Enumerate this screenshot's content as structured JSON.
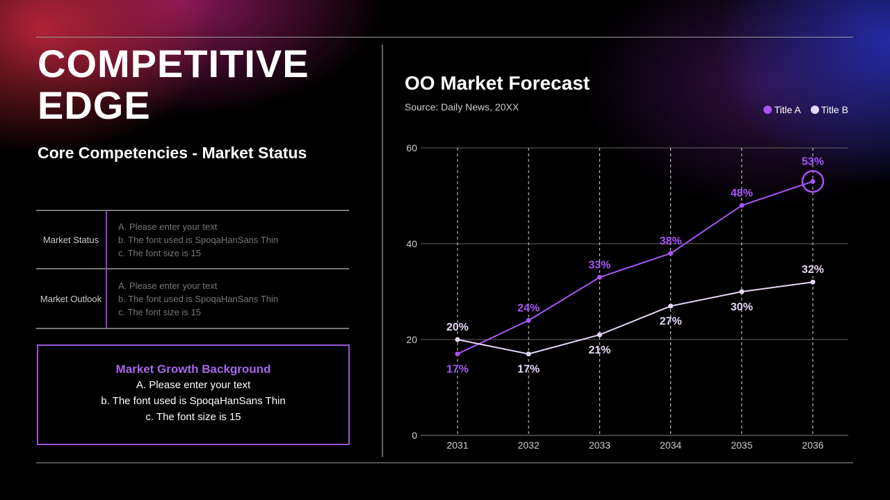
{
  "title": [
    "COMPETITIVE",
    "EDGE"
  ],
  "subtitle": "Core Competencies - Market Status",
  "table": [
    {
      "label": "Market Status",
      "lines": [
        "A. Please enter your text",
        "b. The font used is SpoqaHanSans Thin",
        "c. The font size is 15"
      ]
    },
    {
      "label": "Market Outlook",
      "lines": [
        "A. Please enter your text",
        "b. The font used is SpoqaHanSans Thin",
        "c. The font size is 15"
      ]
    }
  ],
  "box": {
    "title": "Market Growth Background",
    "lines": [
      "A. Please enter your text",
      "b. The font used is SpoqaHanSans Thin",
      "c. The font size is 15"
    ]
  },
  "colors": {
    "accent": "#a855f7",
    "series_b": "#e8d8f8"
  },
  "chart_data": {
    "type": "line",
    "title": "OO Market Forecast",
    "subtitle": "Source: Daily News, 20XX",
    "categories": [
      "2031",
      "2032",
      "2033",
      "2034",
      "2035",
      "2036"
    ],
    "ylim": [
      0,
      60
    ],
    "yticks": [
      "0",
      "20",
      "40",
      "60"
    ],
    "grid": true,
    "legend_placement": "top-right",
    "series": [
      {
        "name": "Title A",
        "values": [
          17,
          24,
          33,
          38,
          48,
          53
        ],
        "labels": [
          "17%",
          "24%",
          "33%",
          "38%",
          "48%",
          "53%"
        ],
        "color": "#a855f7"
      },
      {
        "name": "Title B",
        "values": [
          20,
          17,
          21,
          27,
          30,
          32
        ],
        "labels": [
          "20%",
          "17%",
          "21%",
          "27%",
          "30%",
          "32%"
        ],
        "color": "#e8d8f8"
      }
    ]
  }
}
